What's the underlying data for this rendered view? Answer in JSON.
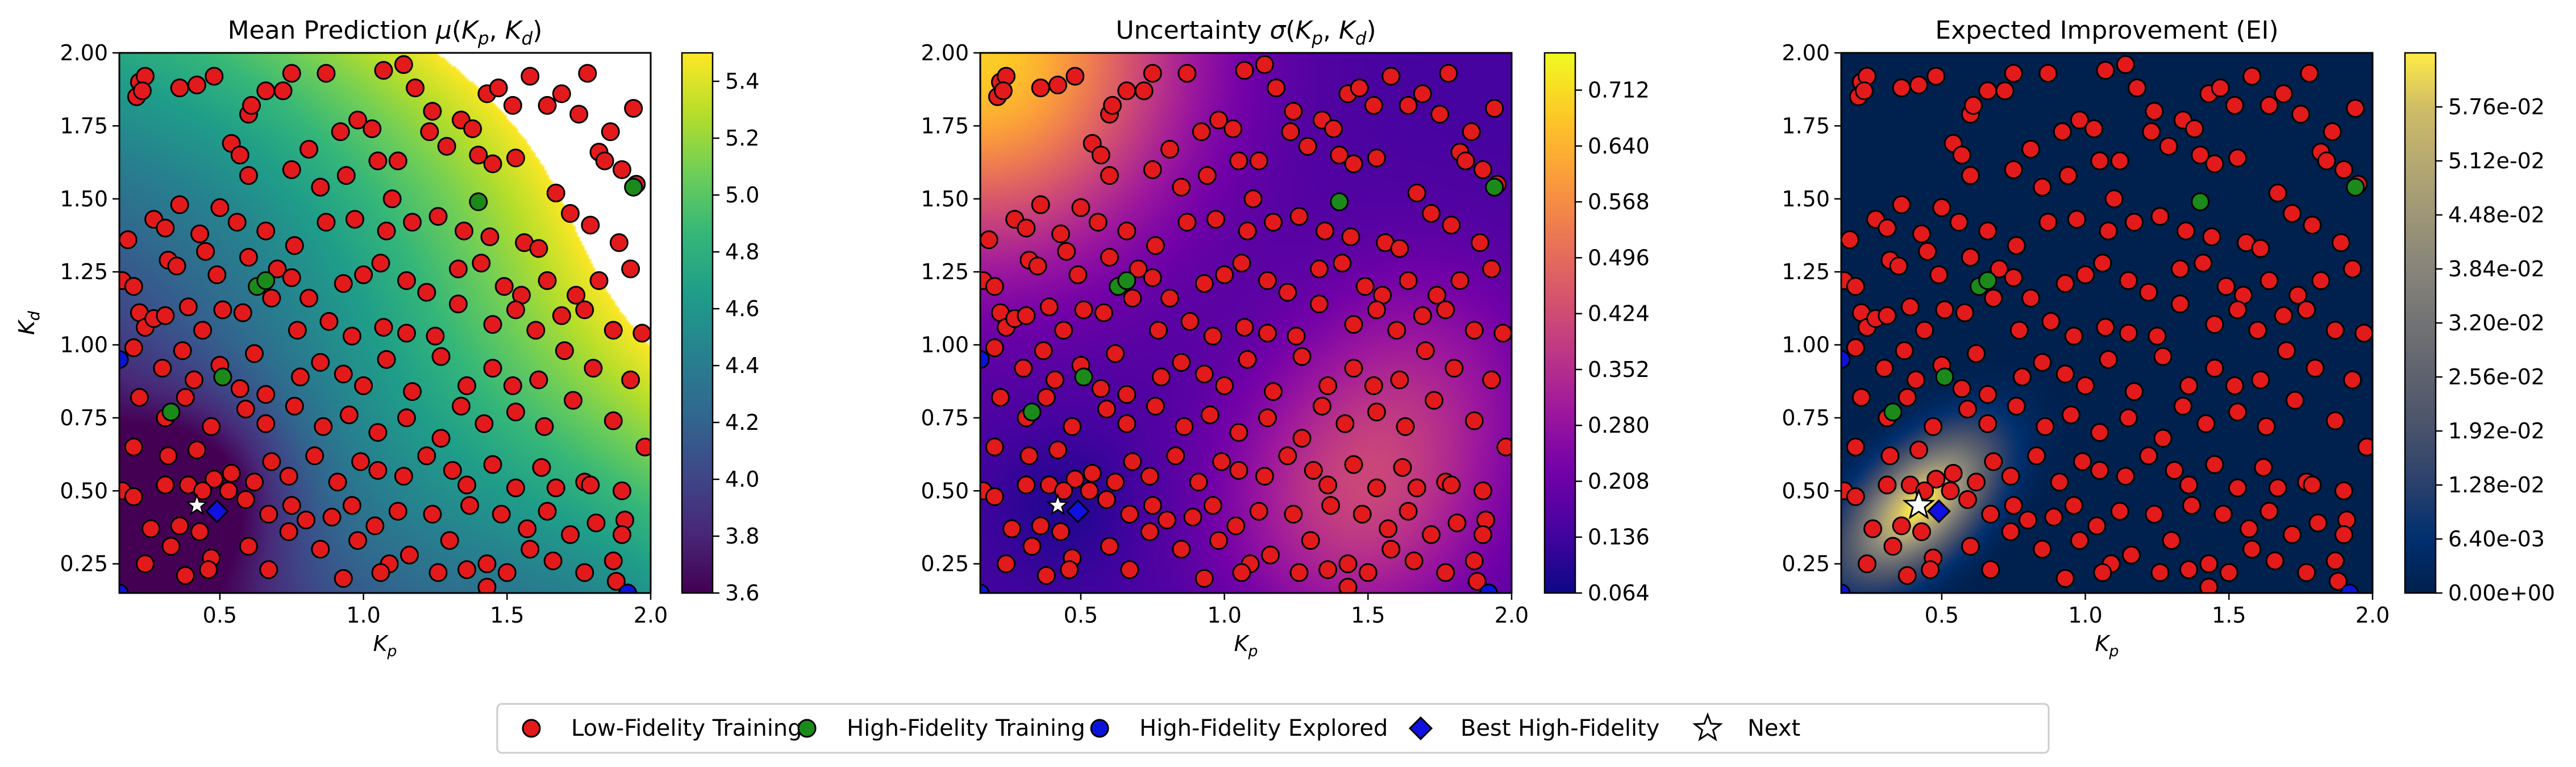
{
  "chart_data": [
    {
      "type": "heatmap",
      "title": "Mean Prediction μ(Kp, Kd)",
      "title_parts": {
        "pre": "Mean Prediction ",
        "sym": "μ",
        "open": "(",
        "v1": "K",
        "s1": "p",
        "comma": ", ",
        "v2": "K",
        "s2": "d",
        "close": ")"
      },
      "xlabel": {
        "v": "K",
        "s": "p"
      },
      "ylabel": {
        "v": "K",
        "s": "d"
      },
      "xlim": [
        0.15,
        2.0
      ],
      "ylim": [
        0.15,
        2.0
      ],
      "xticks": [
        "0.5",
        "1.0",
        "1.5",
        "2.0"
      ],
      "yticks": [
        "0.25",
        "0.50",
        "0.75",
        "1.00",
        "1.25",
        "1.50",
        "1.75",
        "2.00"
      ],
      "colormap": "viridis",
      "colorbar_range": [
        3.6,
        5.5
      ],
      "colorbar_ticks": [
        "3.6",
        "3.8",
        "4.0",
        "4.2",
        "4.4",
        "4.6",
        "4.8",
        "5.0",
        "5.2",
        "5.4"
      ],
      "masked_above": 5.5,
      "colors": {
        "mask": "#ffffff"
      }
    },
    {
      "type": "heatmap",
      "title": "Uncertainty σ(Kp, Kd)",
      "title_parts": {
        "pre": "Uncertainty ",
        "sym": "σ",
        "open": "(",
        "v1": "K",
        "s1": "p",
        "comma": ", ",
        "v2": "K",
        "s2": "d",
        "close": ")"
      },
      "xlabel": {
        "v": "K",
        "s": "p"
      },
      "ylabel": {
        "v": "K",
        "s": "d"
      },
      "xlim": [
        0.15,
        2.0
      ],
      "ylim": [
        0.15,
        2.0
      ],
      "xticks": [
        "0.5",
        "1.0",
        "1.5",
        "2.0"
      ],
      "yticks": [
        "0.25",
        "0.50",
        "0.75",
        "1.00",
        "1.25",
        "1.50",
        "1.75",
        "2.00"
      ],
      "colormap": "plasma",
      "colorbar_range": [
        0.064,
        0.76
      ],
      "colorbar_ticks": [
        "0.064",
        "0.136",
        "0.208",
        "0.280",
        "0.352",
        "0.424",
        "0.496",
        "0.568",
        "0.640",
        "0.712"
      ]
    },
    {
      "type": "heatmap",
      "title": "Expected Improvement (EI)",
      "title_parts": {
        "pre": "Expected Improvement (EI)"
      },
      "xlabel": {
        "v": "K",
        "s": "p"
      },
      "ylabel": {
        "v": "K",
        "s": "d"
      },
      "xlim": [
        0.15,
        2.0
      ],
      "ylim": [
        0.15,
        2.0
      ],
      "xticks": [
        "0.5",
        "1.0",
        "1.5",
        "2.0"
      ],
      "yticks": [
        "0.25",
        "0.50",
        "0.75",
        "1.00",
        "1.25",
        "1.50",
        "1.75",
        "2.00"
      ],
      "colormap": "cividis",
      "colorbar_range": [
        0.0,
        0.064
      ],
      "colorbar_ticks": [
        "0.00e+00",
        "6.40e-03",
        "1.28e-02",
        "1.92e-02",
        "2.56e-02",
        "3.20e-02",
        "3.84e-02",
        "4.48e-02",
        "5.12e-02",
        "5.76e-02"
      ],
      "peak": [
        0.42,
        0.45
      ]
    }
  ],
  "points": {
    "low_fidelity": [
      [
        0.22,
        1.9
      ],
      [
        0.24,
        1.92
      ],
      [
        0.21,
        1.85
      ],
      [
        0.23,
        1.87
      ],
      [
        0.36,
        1.88
      ],
      [
        0.42,
        1.89
      ],
      [
        0.48,
        1.92
      ],
      [
        0.54,
        1.69
      ],
      [
        0.57,
        1.65
      ],
      [
        0.6,
        1.79
      ],
      [
        0.61,
        1.82
      ],
      [
        0.66,
        1.87
      ],
      [
        0.72,
        1.87
      ],
      [
        0.75,
        1.93
      ],
      [
        0.81,
        1.67
      ],
      [
        0.87,
        1.93
      ],
      [
        0.92,
        1.73
      ],
      [
        0.98,
        1.77
      ],
      [
        1.03,
        1.74
      ],
      [
        1.07,
        1.94
      ],
      [
        1.14,
        1.96
      ],
      [
        1.18,
        1.88
      ],
      [
        1.24,
        1.8
      ],
      [
        1.34,
        1.77
      ],
      [
        1.38,
        1.74
      ],
      [
        1.43,
        1.86
      ],
      [
        1.47,
        1.88
      ],
      [
        1.52,
        1.82
      ],
      [
        1.58,
        1.92
      ],
      [
        1.64,
        1.82
      ],
      [
        1.69,
        1.86
      ],
      [
        1.75,
        1.79
      ],
      [
        1.78,
        1.93
      ],
      [
        1.86,
        1.73
      ],
      [
        1.94,
        1.81
      ],
      [
        0.6,
        1.58
      ],
      [
        0.75,
        1.6
      ],
      [
        0.85,
        1.54
      ],
      [
        0.94,
        1.58
      ],
      [
        1.05,
        1.63
      ],
      [
        1.12,
        1.63
      ],
      [
        1.23,
        1.73
      ],
      [
        1.29,
        1.68
      ],
      [
        1.4,
        1.65
      ],
      [
        1.45,
        1.62
      ],
      [
        1.53,
        1.64
      ],
      [
        1.67,
        1.52
      ],
      [
        1.82,
        1.66
      ],
      [
        1.84,
        1.63
      ],
      [
        1.9,
        1.6
      ],
      [
        0.27,
        1.43
      ],
      [
        0.31,
        1.4
      ],
      [
        0.36,
        1.48
      ],
      [
        0.43,
        1.38
      ],
      [
        0.5,
        1.47
      ],
      [
        0.56,
        1.42
      ],
      [
        0.66,
        1.39
      ],
      [
        0.76,
        1.34
      ],
      [
        0.87,
        1.42
      ],
      [
        0.97,
        1.43
      ],
      [
        1.08,
        1.39
      ],
      [
        1.1,
        1.5
      ],
      [
        1.17,
        1.42
      ],
      [
        1.26,
        1.44
      ],
      [
        1.35,
        1.39
      ],
      [
        1.44,
        1.37
      ],
      [
        1.56,
        1.35
      ],
      [
        1.61,
        1.33
      ],
      [
        1.72,
        1.45
      ],
      [
        1.79,
        1.41
      ],
      [
        1.89,
        1.35
      ],
      [
        1.95,
        1.55
      ],
      [
        0.18,
        1.36
      ],
      [
        0.32,
        1.29
      ],
      [
        0.35,
        1.27
      ],
      [
        0.45,
        1.32
      ],
      [
        0.49,
        1.24
      ],
      [
        0.6,
        1.3
      ],
      [
        0.7,
        1.26
      ],
      [
        0.75,
        1.23
      ],
      [
        0.81,
        1.16
      ],
      [
        0.93,
        1.21
      ],
      [
        1.0,
        1.24
      ],
      [
        1.06,
        1.28
      ],
      [
        1.15,
        1.22
      ],
      [
        1.22,
        1.18
      ],
      [
        1.33,
        1.26
      ],
      [
        1.41,
        1.28
      ],
      [
        1.49,
        1.2
      ],
      [
        1.55,
        1.17
      ],
      [
        1.64,
        1.22
      ],
      [
        1.74,
        1.17
      ],
      [
        1.82,
        1.22
      ],
      [
        1.93,
        1.26
      ],
      [
        0.16,
        1.22
      ],
      [
        0.2,
        1.2
      ],
      [
        0.22,
        1.11
      ],
      [
        0.24,
        1.06
      ],
      [
        0.27,
        1.09
      ],
      [
        0.31,
        1.1
      ],
      [
        0.39,
        1.13
      ],
      [
        0.44,
        1.05
      ],
      [
        0.51,
        1.12
      ],
      [
        0.58,
        1.11
      ],
      [
        0.68,
        1.16
      ],
      [
        0.77,
        1.05
      ],
      [
        0.88,
        1.08
      ],
      [
        0.96,
        1.03
      ],
      [
        1.07,
        1.06
      ],
      [
        1.15,
        1.04
      ],
      [
        1.25,
        1.03
      ],
      [
        1.33,
        1.14
      ],
      [
        1.45,
        1.07
      ],
      [
        1.53,
        1.12
      ],
      [
        1.6,
        1.05
      ],
      [
        1.69,
        1.1
      ],
      [
        1.77,
        1.12
      ],
      [
        1.87,
        1.05
      ],
      [
        1.97,
        1.04
      ],
      [
        0.2,
        0.99
      ],
      [
        0.3,
        0.92
      ],
      [
        0.37,
        0.98
      ],
      [
        0.41,
        0.88
      ],
      [
        0.5,
        0.93
      ],
      [
        0.57,
        0.85
      ],
      [
        0.62,
        0.97
      ],
      [
        0.66,
        0.83
      ],
      [
        0.78,
        0.89
      ],
      [
        0.85,
        0.94
      ],
      [
        0.93,
        0.9
      ],
      [
        1.0,
        0.86
      ],
      [
        1.08,
        0.95
      ],
      [
        1.17,
        0.84
      ],
      [
        1.27,
        0.96
      ],
      [
        1.36,
        0.86
      ],
      [
        1.45,
        0.92
      ],
      [
        1.52,
        0.86
      ],
      [
        1.61,
        0.88
      ],
      [
        1.7,
        0.98
      ],
      [
        1.8,
        0.92
      ],
      [
        1.93,
        0.88
      ],
      [
        0.22,
        0.82
      ],
      [
        0.31,
        0.75
      ],
      [
        0.38,
        0.82
      ],
      [
        0.47,
        0.72
      ],
      [
        0.59,
        0.78
      ],
      [
        0.66,
        0.73
      ],
      [
        0.76,
        0.79
      ],
      [
        0.86,
        0.72
      ],
      [
        0.95,
        0.76
      ],
      [
        1.05,
        0.7
      ],
      [
        1.15,
        0.75
      ],
      [
        1.27,
        0.68
      ],
      [
        1.34,
        0.79
      ],
      [
        1.42,
        0.73
      ],
      [
        1.53,
        0.77
      ],
      [
        1.63,
        0.72
      ],
      [
        1.73,
        0.81
      ],
      [
        1.87,
        0.74
      ],
      [
        0.2,
        0.65
      ],
      [
        0.32,
        0.62
      ],
      [
        0.42,
        0.64
      ],
      [
        0.48,
        0.54
      ],
      [
        0.54,
        0.56
      ],
      [
        0.62,
        0.53
      ],
      [
        0.68,
        0.6
      ],
      [
        0.74,
        0.55
      ],
      [
        0.83,
        0.62
      ],
      [
        0.91,
        0.53
      ],
      [
        0.99,
        0.6
      ],
      [
        1.05,
        0.57
      ],
      [
        1.14,
        0.55
      ],
      [
        1.22,
        0.62
      ],
      [
        1.31,
        0.57
      ],
      [
        1.36,
        0.52
      ],
      [
        1.45,
        0.59
      ],
      [
        1.53,
        0.51
      ],
      [
        1.62,
        0.58
      ],
      [
        1.67,
        0.51
      ],
      [
        1.77,
        0.53
      ],
      [
        1.79,
        0.52
      ],
      [
        1.9,
        0.5
      ],
      [
        1.98,
        0.65
      ],
      [
        0.16,
        0.5
      ],
      [
        0.2,
        0.48
      ],
      [
        0.31,
        0.52
      ],
      [
        0.39,
        0.52
      ],
      [
        0.44,
        0.5
      ],
      [
        0.53,
        0.5
      ],
      [
        0.59,
        0.47
      ],
      [
        0.67,
        0.42
      ],
      [
        0.75,
        0.45
      ],
      [
        0.8,
        0.4
      ],
      [
        0.89,
        0.41
      ],
      [
        0.96,
        0.45
      ],
      [
        1.04,
        0.38
      ],
      [
        1.12,
        0.43
      ],
      [
        1.24,
        0.42
      ],
      [
        1.3,
        0.33
      ],
      [
        1.37,
        0.45
      ],
      [
        1.48,
        0.42
      ],
      [
        1.57,
        0.37
      ],
      [
        1.64,
        0.43
      ],
      [
        1.72,
        0.35
      ],
      [
        1.81,
        0.39
      ],
      [
        1.91,
        0.4
      ],
      [
        0.26,
        0.37
      ],
      [
        0.33,
        0.31
      ],
      [
        0.36,
        0.38
      ],
      [
        0.43,
        0.36
      ],
      [
        0.47,
        0.27
      ],
      [
        0.6,
        0.31
      ],
      [
        0.74,
        0.36
      ],
      [
        0.85,
        0.3
      ],
      [
        0.98,
        0.33
      ],
      [
        1.09,
        0.25
      ],
      [
        1.16,
        0.28
      ],
      [
        1.26,
        0.22
      ],
      [
        1.36,
        0.23
      ],
      [
        1.43,
        0.25
      ],
      [
        1.5,
        0.22
      ],
      [
        1.58,
        0.3
      ],
      [
        1.66,
        0.26
      ],
      [
        1.77,
        0.22
      ],
      [
        1.87,
        0.26
      ],
      [
        1.9,
        0.35
      ],
      [
        0.24,
        0.25
      ],
      [
        0.38,
        0.21
      ],
      [
        0.46,
        0.23
      ],
      [
        0.67,
        0.23
      ],
      [
        0.93,
        0.2
      ],
      [
        1.06,
        0.22
      ],
      [
        1.43,
        0.17
      ],
      [
        1.88,
        0.19
      ]
    ],
    "high_fidelity": [
      [
        0.33,
        0.77
      ],
      [
        0.51,
        0.89
      ],
      [
        0.63,
        1.2
      ],
      [
        0.66,
        1.22
      ],
      [
        1.4,
        1.49
      ],
      [
        1.94,
        1.54
      ]
    ],
    "high_fidelity_explored": [
      [
        0.15,
        0.95
      ],
      [
        0.15,
        0.15
      ],
      [
        1.92,
        0.15
      ]
    ],
    "best_high_fidelity": [
      0.49,
      0.43
    ],
    "next": [
      0.42,
      0.45
    ]
  },
  "legend": {
    "placement": "bottom-center",
    "entries": [
      {
        "label": "Low-Fidelity Training",
        "marker": "circle",
        "color": "#e31a1c"
      },
      {
        "label": "High-Fidelity Training",
        "marker": "circle",
        "color": "#1b8a1b"
      },
      {
        "label": "High-Fidelity Explored",
        "marker": "circle",
        "color": "#0a14d8"
      },
      {
        "label": "Best High-Fidelity",
        "marker": "diamond",
        "color": "#1010e0"
      },
      {
        "label": "Next",
        "marker": "star",
        "color": "#ffffff"
      }
    ]
  }
}
